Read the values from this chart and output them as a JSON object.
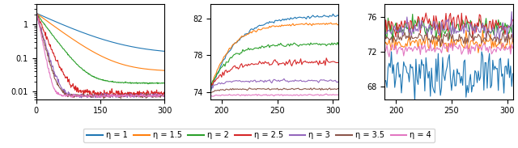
{
  "colors": {
    "eta_1": "#1f77b4",
    "eta_1_5": "#ff7f0e",
    "eta_2": "#2ca02c",
    "eta_2_5": "#d62728",
    "eta_3": "#9467bd",
    "eta_3_5": "#8c564b",
    "eta_4": "#e377c2"
  },
  "legend_labels": [
    "η = 1",
    "η = 1.5",
    "η = 2",
    "η = 2.5",
    "η = 3",
    "η = 3.5",
    "η = 4"
  ],
  "subplot1": {
    "xmin": 0,
    "xmax": 300,
    "ylim_low": 0.006,
    "ylim_high": 4.0,
    "yticks": [
      0.01,
      0.1,
      1
    ],
    "xticks": [
      0,
      150,
      300
    ]
  },
  "subplot2": {
    "xmin": 190,
    "xmax": 305,
    "ymin": 73.2,
    "ymax": 83.5,
    "yticks": [
      74,
      78,
      82
    ],
    "xticks": [
      200,
      250,
      300
    ]
  },
  "subplot3": {
    "xmin": 190,
    "xmax": 305,
    "ymin": 66.5,
    "ymax": 77.5,
    "yticks": [
      68,
      72,
      76
    ],
    "xticks": [
      200,
      250,
      300
    ]
  },
  "s1_params": {
    "eta_1": {
      "start": 2.2,
      "end": 0.13,
      "rate": 0.014,
      "noise": 0.0
    },
    "eta_1_5": {
      "start": 2.2,
      "end": 0.04,
      "rate": 0.022,
      "noise": 0.0
    },
    "eta_2": {
      "start": 2.2,
      "end": 0.018,
      "rate": 0.04,
      "noise": 0.018
    },
    "eta_2_5": {
      "start": 2.2,
      "end": 0.009,
      "rate": 0.07,
      "noise": 0.1
    },
    "eta_3": {
      "start": 2.2,
      "end": 0.0075,
      "rate": 0.1,
      "noise": 0.07
    },
    "eta_3_5": {
      "start": 2.2,
      "end": 0.0075,
      "rate": 0.11,
      "noise": 0.06
    },
    "eta_4": {
      "start": 2.8,
      "end": 0.0075,
      "rate": 0.15,
      "noise": 0.05
    }
  },
  "s2_params": {
    "eta_1": {
      "start": 74.0,
      "end": 82.3,
      "rate": 0.045,
      "noise": 0.07
    },
    "eta_1_5": {
      "start": 74.3,
      "end": 81.4,
      "rate": 0.055,
      "noise": 0.07
    },
    "eta_2": {
      "start": 74.5,
      "end": 79.2,
      "rate": 0.06,
      "noise": 0.1
    },
    "eta_2_5": {
      "start": 74.5,
      "end": 77.2,
      "rate": 0.07,
      "noise": 0.15
    },
    "eta_3": {
      "start": 74.5,
      "end": 75.2,
      "rate": 0.1,
      "noise": 0.08
    },
    "eta_3_5": {
      "start": 73.9,
      "end": 74.3,
      "rate": 0.15,
      "noise": 0.05
    },
    "eta_4": {
      "start": 73.5,
      "end": 73.65,
      "rate": 0.2,
      "noise": 0.04
    }
  },
  "s3_params": {
    "eta_1": {
      "mean": 69.5,
      "noise": 1.5
    },
    "eta_1_5": {
      "mean": 73.0,
      "noise": 0.5
    },
    "eta_2": {
      "mean": 74.8,
      "noise": 0.6
    },
    "eta_2_5": {
      "mean": 75.1,
      "noise": 0.7
    },
    "eta_3": {
      "mean": 74.7,
      "noise": 0.5
    },
    "eta_3_5": {
      "mean": 73.6,
      "noise": 0.35
    },
    "eta_4": {
      "mean": 72.4,
      "noise": 0.35
    }
  }
}
